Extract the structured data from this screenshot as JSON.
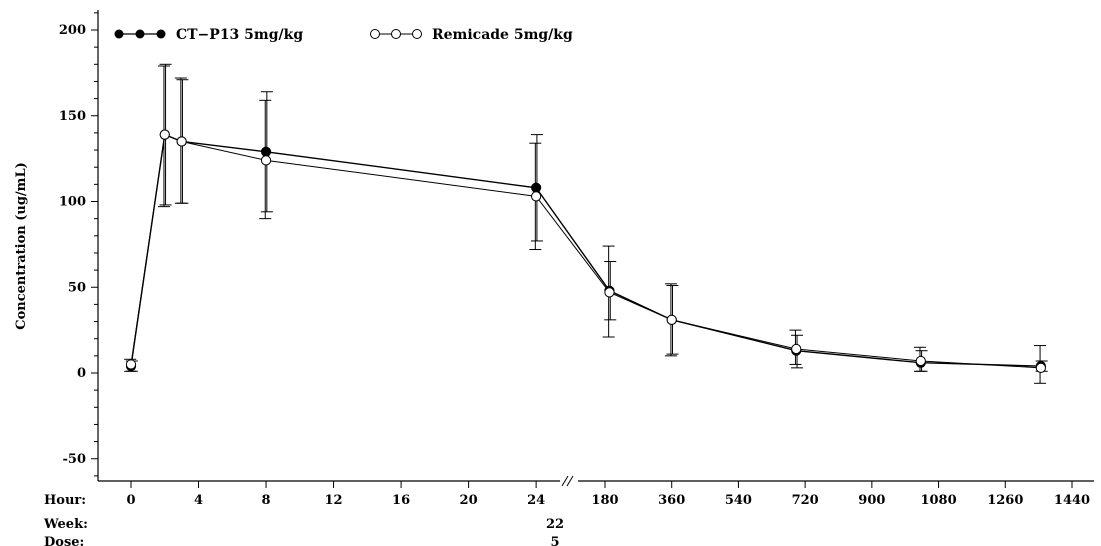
{
  "chart_data": {
    "type": "line",
    "ylabel": "Concentration (ug/mL)",
    "ylim": [
      -60,
      210
    ],
    "y_ticks": [
      "-50",
      "0",
      "50",
      "100",
      "150",
      "200"
    ],
    "x_axis_segments": [
      {
        "scale": "linear",
        "range": [
          -2,
          25
        ],
        "ticks": [
          0,
          4,
          8,
          12,
          16,
          20,
          24
        ]
      },
      {
        "scale": "linear",
        "range": [
          120,
          1480
        ],
        "ticks": [
          180,
          360,
          540,
          720,
          900,
          1080,
          1260,
          1440
        ]
      }
    ],
    "axis_break": "between 24 and 180 hours",
    "rows": {
      "hour_label": "Hour:",
      "week_label": "Week:",
      "dose_label": "Dose:",
      "week_value": "22",
      "dose_value": "5"
    },
    "legend_position": "top-left",
    "series": [
      {
        "name": "CT−P13 5mg/kg",
        "marker": "filled-circle",
        "x": [
          0,
          2,
          3,
          8,
          24,
          192,
          360,
          696,
          1032,
          1356
        ],
        "y": [
          4,
          139,
          135,
          129,
          108,
          48,
          31,
          13,
          6,
          4
        ],
        "err_low": [
          1,
          98,
          99,
          94,
          77,
          31,
          11,
          3,
          1,
          1
        ],
        "err_high": [
          7,
          180,
          171,
          164,
          139,
          65,
          51,
          22,
          13,
          7
        ]
      },
      {
        "name": "Remicade 5mg/kg",
        "marker": "open-circle",
        "x": [
          0,
          2,
          3,
          8,
          24,
          192,
          360,
          696,
          1032,
          1356
        ],
        "y": [
          5,
          139,
          135,
          124,
          103,
          47,
          31,
          14,
          7,
          3
        ],
        "err_low": [
          1,
          97,
          99,
          90,
          72,
          21,
          10,
          5,
          1,
          -6
        ],
        "err_high": [
          8,
          179,
          172,
          159,
          134,
          74,
          52,
          25,
          15,
          16
        ]
      }
    ]
  }
}
